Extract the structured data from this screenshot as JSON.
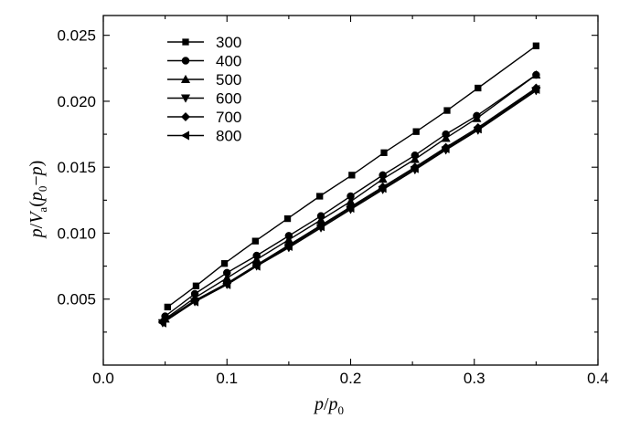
{
  "chart_data": {
    "type": "line",
    "xlim": [
      0.0,
      0.4
    ],
    "ylim": [
      0.0,
      0.0265
    ],
    "x_ticks": [
      "0.0",
      "0.1",
      "0.2",
      "0.3",
      "0.4"
    ],
    "x_tick_values": [
      0.0,
      0.1,
      0.2,
      0.3,
      0.4
    ],
    "y_ticks": [
      "0.005",
      "0.010",
      "0.015",
      "0.020",
      "0.025"
    ],
    "y_tick_values": [
      0.005,
      0.01,
      0.015,
      0.02,
      0.025
    ],
    "grid": false,
    "legend_placement": "top-left",
    "series": [
      {
        "name": "300",
        "marker": "square",
        "x": [
          0.052,
          0.075,
          0.098,
          0.123,
          0.149,
          0.175,
          0.201,
          0.227,
          0.253,
          0.278,
          0.303,
          0.35
        ],
        "y": [
          0.0044,
          0.006,
          0.0077,
          0.0094,
          0.0111,
          0.0128,
          0.0144,
          0.0161,
          0.0177,
          0.0193,
          0.021,
          0.0242
        ]
      },
      {
        "name": "400",
        "marker": "circle",
        "x": [
          0.05,
          0.074,
          0.1,
          0.124,
          0.15,
          0.176,
          0.2,
          0.226,
          0.252,
          0.277,
          0.302,
          0.35
        ],
        "y": [
          0.0037,
          0.0054,
          0.007,
          0.0083,
          0.0098,
          0.0113,
          0.0128,
          0.0144,
          0.0159,
          0.0175,
          0.0189,
          0.022
        ]
      },
      {
        "name": "500",
        "marker": "triangle-up",
        "x": [
          0.05,
          0.074,
          0.1,
          0.124,
          0.15,
          0.176,
          0.2,
          0.226,
          0.252,
          0.277,
          0.302,
          0.35
        ],
        "y": [
          0.0035,
          0.0051,
          0.0066,
          0.008,
          0.0095,
          0.011,
          0.0124,
          0.0141,
          0.0156,
          0.0172,
          0.0187,
          0.022
        ]
      },
      {
        "name": "600",
        "marker": "triangle-down",
        "x": [
          0.048,
          0.074,
          0.1,
          0.124,
          0.15,
          0.176,
          0.2,
          0.226,
          0.252,
          0.277,
          0.303,
          0.35
        ],
        "y": [
          0.0032,
          0.0048,
          0.0061,
          0.0075,
          0.0089,
          0.0104,
          0.0118,
          0.0133,
          0.0148,
          0.0163,
          0.0178,
          0.0208
        ]
      },
      {
        "name": "700",
        "marker": "diamond",
        "x": [
          0.048,
          0.074,
          0.1,
          0.124,
          0.15,
          0.176,
          0.2,
          0.226,
          0.252,
          0.277,
          0.303,
          0.35
        ],
        "y": [
          0.0033,
          0.0049,
          0.0062,
          0.0076,
          0.0091,
          0.0106,
          0.012,
          0.0135,
          0.015,
          0.0165,
          0.018,
          0.021
        ]
      },
      {
        "name": "800",
        "marker": "triangle-left",
        "x": [
          0.048,
          0.074,
          0.1,
          0.124,
          0.15,
          0.176,
          0.2,
          0.226,
          0.252,
          0.277,
          0.303,
          0.35
        ],
        "y": [
          0.0032,
          0.0048,
          0.0061,
          0.0075,
          0.009,
          0.0105,
          0.0119,
          0.0134,
          0.0149,
          0.0164,
          0.0179,
          0.0209
        ]
      }
    ]
  }
}
